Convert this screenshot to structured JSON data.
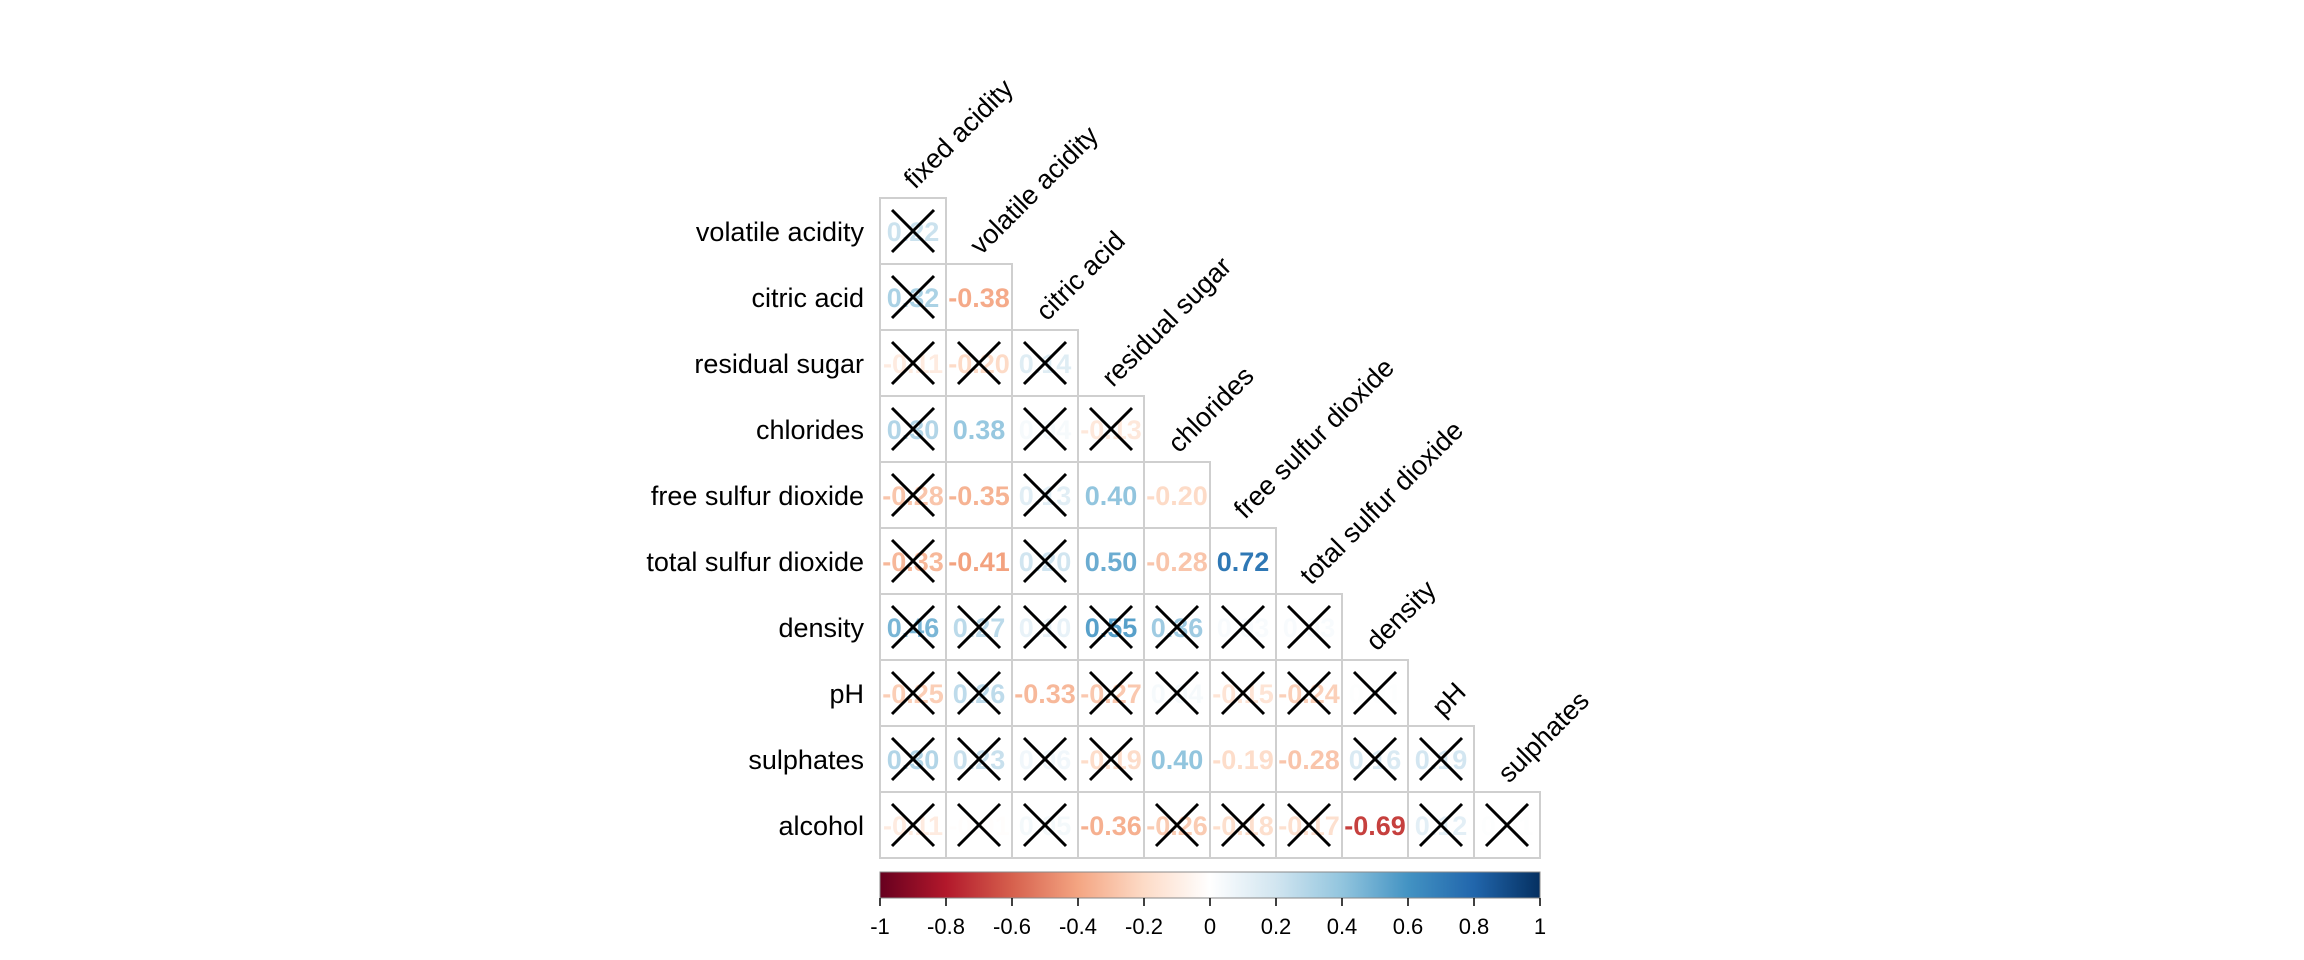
{
  "chart_data": {
    "type": "heatmap",
    "variables": [
      "fixed acidity",
      "volatile acidity",
      "citric acid",
      "residual sugar",
      "chlorides",
      "free sulfur dioxide",
      "total sulfur dioxide",
      "density",
      "pH",
      "sulphates",
      "alcohol"
    ],
    "row_labels": [
      "volatile acidity",
      "citric acid",
      "residual sugar",
      "chlorides",
      "free sulfur dioxide",
      "total sulfur dioxide",
      "density",
      "pH",
      "sulphates",
      "alcohol"
    ],
    "col_labels": [
      "fixed acidity",
      "volatile acidity",
      "citric acid",
      "residual sugar",
      "chlorides",
      "free sulfur dioxide",
      "total sulfur dioxide",
      "density",
      "pH",
      "sulphates"
    ],
    "cells": [
      {
        "row": 0,
        "col": 0,
        "value": 0.22,
        "label": "0.22",
        "crossed": true
      },
      {
        "row": 1,
        "col": 0,
        "value": 0.32,
        "label": "0.32",
        "crossed": true
      },
      {
        "row": 1,
        "col": 1,
        "value": -0.38,
        "label": "-0.38",
        "crossed": false
      },
      {
        "row": 2,
        "col": 0,
        "value": -0.11,
        "label": "-0.11",
        "crossed": true
      },
      {
        "row": 2,
        "col": 1,
        "value": -0.2,
        "label": "-0.20",
        "crossed": true
      },
      {
        "row": 2,
        "col": 2,
        "value": 0.14,
        "label": "0.14",
        "crossed": true
      },
      {
        "row": 3,
        "col": 0,
        "value": 0.3,
        "label": "0.30",
        "crossed": true
      },
      {
        "row": 3,
        "col": 1,
        "value": 0.38,
        "label": "0.38",
        "crossed": false
      },
      {
        "row": 3,
        "col": 2,
        "value": 0.04,
        "label": "0.04",
        "crossed": true
      },
      {
        "row": 3,
        "col": 3,
        "value": -0.13,
        "label": "-0.13",
        "crossed": true
      },
      {
        "row": 4,
        "col": 0,
        "value": -0.28,
        "label": "-0.28",
        "crossed": true
      },
      {
        "row": 4,
        "col": 1,
        "value": -0.35,
        "label": "-0.35",
        "crossed": false
      },
      {
        "row": 4,
        "col": 2,
        "value": 0.13,
        "label": "0.13",
        "crossed": true
      },
      {
        "row": 4,
        "col": 3,
        "value": 0.4,
        "label": "0.40",
        "crossed": false
      },
      {
        "row": 4,
        "col": 4,
        "value": -0.2,
        "label": "-0.20",
        "crossed": false
      },
      {
        "row": 5,
        "col": 0,
        "value": -0.33,
        "label": "-0.33",
        "crossed": true
      },
      {
        "row": 5,
        "col": 1,
        "value": -0.41,
        "label": "-0.41",
        "crossed": false
      },
      {
        "row": 5,
        "col": 2,
        "value": 0.2,
        "label": "0.20",
        "crossed": true
      },
      {
        "row": 5,
        "col": 3,
        "value": 0.5,
        "label": "0.50",
        "crossed": false
      },
      {
        "row": 5,
        "col": 4,
        "value": -0.28,
        "label": "-0.28",
        "crossed": false
      },
      {
        "row": 5,
        "col": 5,
        "value": 0.72,
        "label": "0.72",
        "crossed": false
      },
      {
        "row": 6,
        "col": 0,
        "value": 0.46,
        "label": "0.46",
        "crossed": true
      },
      {
        "row": 6,
        "col": 1,
        "value": 0.27,
        "label": "0.27",
        "crossed": true
      },
      {
        "row": 6,
        "col": 2,
        "value": 0.1,
        "label": "0.10",
        "crossed": true
      },
      {
        "row": 6,
        "col": 3,
        "value": 0.55,
        "label": "0.55",
        "crossed": true
      },
      {
        "row": 6,
        "col": 4,
        "value": 0.36,
        "label": "0.36",
        "crossed": true
      },
      {
        "row": 6,
        "col": 5,
        "value": 0.03,
        "label": "0.03",
        "crossed": true
      },
      {
        "row": 6,
        "col": 6,
        "value": 0.03,
        "label": "0.03",
        "crossed": true
      },
      {
        "row": 7,
        "col": 0,
        "value": -0.25,
        "label": "-0.25",
        "crossed": true
      },
      {
        "row": 7,
        "col": 1,
        "value": 0.26,
        "label": "0.26",
        "crossed": true
      },
      {
        "row": 7,
        "col": 2,
        "value": -0.33,
        "label": "-0.33",
        "crossed": false
      },
      {
        "row": 7,
        "col": 3,
        "value": -0.27,
        "label": "-0.27",
        "crossed": true
      },
      {
        "row": 7,
        "col": 4,
        "value": 0.04,
        "label": "0.04",
        "crossed": true
      },
      {
        "row": 7,
        "col": 5,
        "value": -0.15,
        "label": "-0.15",
        "crossed": true
      },
      {
        "row": 7,
        "col": 6,
        "value": -0.24,
        "label": "-0.24",
        "crossed": true
      },
      {
        "row": 7,
        "col": 7,
        "value": 0.01,
        "label": "0.01",
        "crossed": true
      },
      {
        "row": 8,
        "col": 0,
        "value": 0.3,
        "label": "0.30",
        "crossed": true
      },
      {
        "row": 8,
        "col": 1,
        "value": 0.23,
        "label": "0.23",
        "crossed": true
      },
      {
        "row": 8,
        "col": 2,
        "value": 0.06,
        "label": "0.06",
        "crossed": true
      },
      {
        "row": 8,
        "col": 3,
        "value": -0.19,
        "label": "-0.19",
        "crossed": true
      },
      {
        "row": 8,
        "col": 4,
        "value": 0.4,
        "label": "0.40",
        "crossed": false
      },
      {
        "row": 8,
        "col": 5,
        "value": -0.19,
        "label": "-0.19",
        "crossed": false
      },
      {
        "row": 8,
        "col": 6,
        "value": -0.28,
        "label": "-0.28",
        "crossed": false
      },
      {
        "row": 8,
        "col": 7,
        "value": 0.16,
        "label": "0.16",
        "crossed": true
      },
      {
        "row": 8,
        "col": 8,
        "value": 0.19,
        "label": "0.19",
        "crossed": true
      },
      {
        "row": 9,
        "col": 0,
        "value": -0.11,
        "label": "-0.11",
        "crossed": true
      },
      {
        "row": 9,
        "col": 1,
        "value": -0.01,
        "label": "-0.01",
        "crossed": true
      },
      {
        "row": 9,
        "col": 2,
        "value": 0.05,
        "label": "0.05",
        "crossed": true
      },
      {
        "row": 9,
        "col": 3,
        "value": -0.36,
        "label": "-0.36",
        "crossed": false
      },
      {
        "row": 9,
        "col": 4,
        "value": -0.26,
        "label": "-0.26",
        "crossed": true
      },
      {
        "row": 9,
        "col": 5,
        "value": -0.18,
        "label": "-0.18",
        "crossed": true
      },
      {
        "row": 9,
        "col": 6,
        "value": -0.17,
        "label": "-0.17",
        "crossed": true
      },
      {
        "row": 9,
        "col": 7,
        "value": -0.69,
        "label": "-0.69",
        "crossed": false
      },
      {
        "row": 9,
        "col": 8,
        "value": 0.12,
        "label": "0.12",
        "crossed": true
      },
      {
        "row": 9,
        "col": 9,
        "value": 0.01,
        "label": "0.01",
        "crossed": true
      }
    ],
    "colorbar": {
      "range": [
        -1,
        1
      ],
      "ticks": [
        "-1",
        "-0.8",
        "-0.6",
        "-0.4",
        "-0.2",
        "0",
        "0.2",
        "0.4",
        "0.6",
        "0.8",
        "1"
      ],
      "colors": [
        "#67001F",
        "#B2182B",
        "#D6604D",
        "#F4A582",
        "#FDDBC7",
        "#FFFFFF",
        "#D1E5F0",
        "#92C5DE",
        "#4393C3",
        "#2166AC",
        "#053061"
      ]
    }
  }
}
